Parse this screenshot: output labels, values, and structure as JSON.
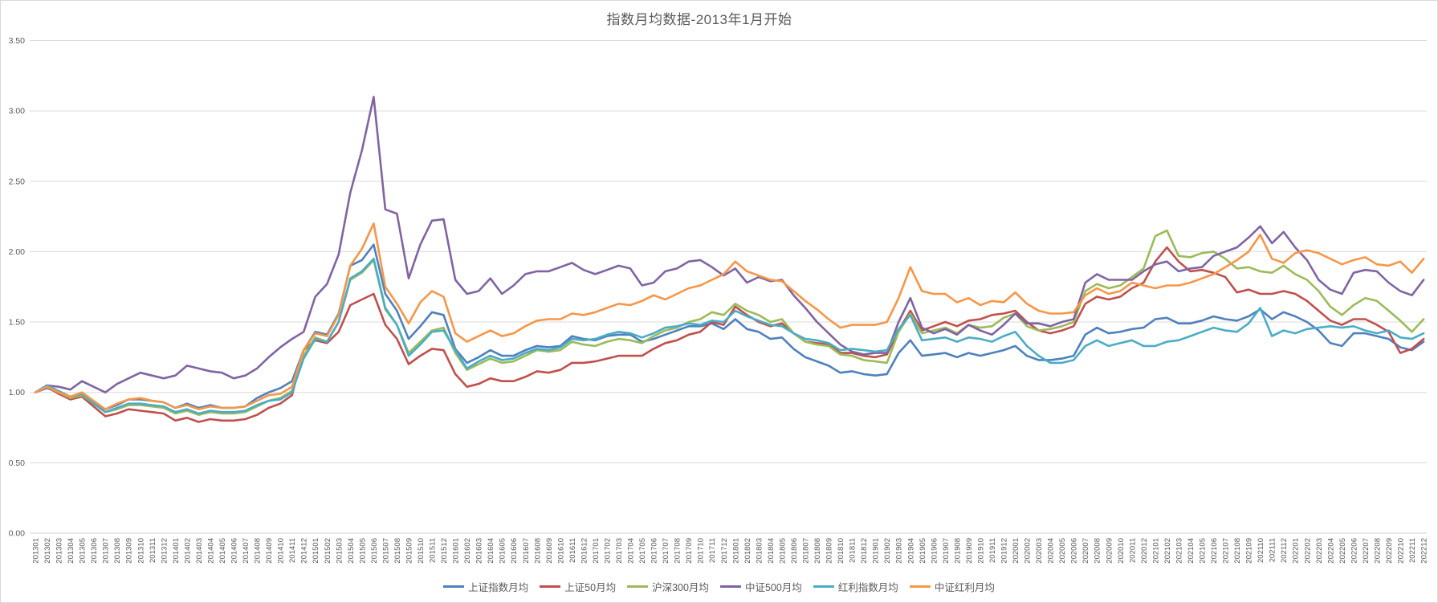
{
  "title": "指数月均数据-2013年1月开始",
  "chart_data": {
    "type": "line",
    "title": "指数月均数据-2013年1月开始",
    "xlabel": "",
    "ylabel": "",
    "ylim": [
      0,
      3.5
    ],
    "y_tick_step": 0.5,
    "y_ticks": [
      "0.00",
      "0.50",
      "1.00",
      "1.50",
      "2.00",
      "2.50",
      "3.00",
      "3.50"
    ],
    "grid": "horizontal",
    "legend_position": "bottom",
    "x_labels": [
      "201301",
      "201302",
      "201303",
      "201304",
      "201305",
      "201306",
      "201307",
      "201308",
      "201309",
      "201310",
      "201311",
      "201312",
      "201401",
      "201402",
      "201403",
      "201404",
      "201405",
      "201406",
      "201407",
      "201408",
      "201409",
      "201410",
      "201411",
      "201412",
      "201501",
      "201502",
      "201503",
      "201504",
      "201505",
      "201506",
      "201507",
      "201508",
      "201509",
      "201510",
      "201511",
      "201512",
      "201601",
      "201602",
      "201603",
      "201604",
      "201605",
      "201606",
      "201607",
      "201608",
      "201609",
      "201610",
      "201611",
      "201612",
      "201701",
      "201702",
      "201703",
      "201704",
      "201705",
      "201706",
      "201707",
      "201708",
      "201709",
      "201710",
      "201711",
      "201712",
      "201801",
      "201802",
      "201803",
      "201804",
      "201805",
      "201806",
      "201807",
      "201808",
      "201809",
      "201810",
      "201811",
      "201812",
      "201901",
      "201902",
      "201903",
      "201904",
      "201905",
      "201906",
      "201907",
      "201908",
      "201909",
      "201910",
      "201911",
      "201912",
      "202001",
      "202002",
      "202003",
      "202004",
      "202005",
      "202006",
      "202007",
      "202008",
      "202009",
      "202010",
      "202011",
      "202012",
      "202101",
      "202102",
      "202103",
      "202104",
      "202105",
      "202106",
      "202107",
      "202108",
      "202109",
      "202110",
      "202111",
      "202112",
      "202201",
      "202202",
      "202203",
      "202204",
      "202205",
      "202206",
      "202207",
      "202208",
      "202209",
      "202210",
      "202211",
      "202212"
    ],
    "series": [
      {
        "name": "上证指数月均",
        "color": "#4F81BD",
        "values": [
          1.0,
          1.03,
          1.0,
          0.97,
          0.99,
          0.93,
          0.88,
          0.91,
          0.95,
          0.95,
          0.94,
          0.93,
          0.89,
          0.92,
          0.89,
          0.91,
          0.89,
          0.89,
          0.9,
          0.96,
          1.0,
          1.03,
          1.08,
          1.3,
          1.43,
          1.41,
          1.56,
          1.9,
          1.94,
          2.05,
          1.7,
          1.58,
          1.38,
          1.47,
          1.57,
          1.55,
          1.31,
          1.21,
          1.25,
          1.3,
          1.26,
          1.26,
          1.3,
          1.33,
          1.32,
          1.33,
          1.4,
          1.38,
          1.37,
          1.4,
          1.41,
          1.41,
          1.36,
          1.38,
          1.41,
          1.44,
          1.47,
          1.47,
          1.49,
          1.45,
          1.52,
          1.45,
          1.43,
          1.38,
          1.39,
          1.31,
          1.25,
          1.22,
          1.19,
          1.14,
          1.15,
          1.13,
          1.12,
          1.13,
          1.28,
          1.37,
          1.26,
          1.27,
          1.28,
          1.25,
          1.28,
          1.26,
          1.28,
          1.3,
          1.33,
          1.26,
          1.23,
          1.23,
          1.24,
          1.26,
          1.41,
          1.46,
          1.42,
          1.43,
          1.45,
          1.46,
          1.52,
          1.53,
          1.49,
          1.49,
          1.51,
          1.54,
          1.52,
          1.51,
          1.54,
          1.59,
          1.52,
          1.57,
          1.54,
          1.5,
          1.44,
          1.35,
          1.33,
          1.42,
          1.42,
          1.4,
          1.38,
          1.32,
          1.3,
          1.36
        ]
      },
      {
        "name": "上证50月均",
        "color": "#C0504D",
        "values": [
          1.0,
          1.04,
          0.99,
          0.95,
          0.97,
          0.9,
          0.83,
          0.85,
          0.88,
          0.87,
          0.86,
          0.85,
          0.8,
          0.82,
          0.79,
          0.81,
          0.8,
          0.8,
          0.81,
          0.84,
          0.89,
          0.92,
          0.98,
          1.3,
          1.37,
          1.35,
          1.43,
          1.62,
          1.66,
          1.7,
          1.48,
          1.38,
          1.2,
          1.26,
          1.31,
          1.3,
          1.13,
          1.04,
          1.06,
          1.1,
          1.08,
          1.08,
          1.11,
          1.15,
          1.14,
          1.16,
          1.21,
          1.21,
          1.22,
          1.24,
          1.26,
          1.26,
          1.26,
          1.31,
          1.35,
          1.37,
          1.41,
          1.43,
          1.5,
          1.48,
          1.61,
          1.55,
          1.5,
          1.47,
          1.49,
          1.42,
          1.36,
          1.35,
          1.34,
          1.28,
          1.28,
          1.26,
          1.25,
          1.27,
          1.44,
          1.58,
          1.44,
          1.47,
          1.5,
          1.47,
          1.51,
          1.52,
          1.55,
          1.56,
          1.58,
          1.5,
          1.44,
          1.42,
          1.44,
          1.47,
          1.63,
          1.68,
          1.66,
          1.68,
          1.74,
          1.78,
          1.93,
          2.03,
          1.93,
          1.86,
          1.87,
          1.85,
          1.82,
          1.71,
          1.73,
          1.7,
          1.7,
          1.72,
          1.7,
          1.65,
          1.58,
          1.51,
          1.48,
          1.52,
          1.52,
          1.48,
          1.43,
          1.28,
          1.31,
          1.38
        ]
      },
      {
        "name": "沪深300月均",
        "color": "#9BBB59",
        "values": [
          1.0,
          1.04,
          1.0,
          0.96,
          0.98,
          0.92,
          0.86,
          0.88,
          0.91,
          0.91,
          0.9,
          0.89,
          0.85,
          0.87,
          0.84,
          0.86,
          0.85,
          0.85,
          0.86,
          0.9,
          0.94,
          0.96,
          1.01,
          1.26,
          1.39,
          1.36,
          1.5,
          1.8,
          1.85,
          1.94,
          1.59,
          1.48,
          1.28,
          1.36,
          1.44,
          1.46,
          1.28,
          1.16,
          1.2,
          1.24,
          1.21,
          1.22,
          1.26,
          1.3,
          1.29,
          1.3,
          1.36,
          1.34,
          1.33,
          1.36,
          1.38,
          1.37,
          1.35,
          1.4,
          1.44,
          1.46,
          1.5,
          1.52,
          1.57,
          1.55,
          1.63,
          1.58,
          1.55,
          1.5,
          1.52,
          1.42,
          1.36,
          1.34,
          1.33,
          1.27,
          1.26,
          1.23,
          1.22,
          1.21,
          1.43,
          1.56,
          1.42,
          1.44,
          1.46,
          1.42,
          1.48,
          1.46,
          1.47,
          1.53,
          1.56,
          1.47,
          1.44,
          1.45,
          1.47,
          1.5,
          1.72,
          1.77,
          1.74,
          1.76,
          1.82,
          1.88,
          2.11,
          2.15,
          1.97,
          1.96,
          1.99,
          2.0,
          1.95,
          1.88,
          1.89,
          1.86,
          1.85,
          1.9,
          1.84,
          1.8,
          1.72,
          1.61,
          1.55,
          1.62,
          1.67,
          1.65,
          1.58,
          1.51,
          1.43,
          1.52
        ]
      },
      {
        "name": "中证500月均",
        "color": "#8064A2",
        "values": [
          1.0,
          1.05,
          1.04,
          1.02,
          1.08,
          1.04,
          1.0,
          1.06,
          1.1,
          1.14,
          1.12,
          1.1,
          1.12,
          1.19,
          1.17,
          1.15,
          1.14,
          1.1,
          1.12,
          1.17,
          1.25,
          1.32,
          1.38,
          1.43,
          1.68,
          1.77,
          1.98,
          2.42,
          2.72,
          3.1,
          2.3,
          2.27,
          1.81,
          2.05,
          2.22,
          2.23,
          1.8,
          1.7,
          1.72,
          1.81,
          1.7,
          1.76,
          1.84,
          1.86,
          1.86,
          1.89,
          1.92,
          1.87,
          1.84,
          1.87,
          1.9,
          1.88,
          1.76,
          1.78,
          1.86,
          1.88,
          1.93,
          1.94,
          1.89,
          1.83,
          1.88,
          1.78,
          1.82,
          1.79,
          1.8,
          1.69,
          1.6,
          1.5,
          1.42,
          1.34,
          1.29,
          1.27,
          1.28,
          1.28,
          1.5,
          1.67,
          1.46,
          1.42,
          1.45,
          1.41,
          1.48,
          1.44,
          1.41,
          1.48,
          1.56,
          1.49,
          1.49,
          1.47,
          1.5,
          1.52,
          1.78,
          1.84,
          1.8,
          1.8,
          1.8,
          1.86,
          1.91,
          1.93,
          1.86,
          1.88,
          1.89,
          1.97,
          2.0,
          2.03,
          2.1,
          2.18,
          2.06,
          2.14,
          2.03,
          1.94,
          1.8,
          1.73,
          1.7,
          1.85,
          1.87,
          1.86,
          1.78,
          1.72,
          1.69,
          1.8
        ]
      },
      {
        "name": "红利指数月均",
        "color": "#4BACC6",
        "values": [
          1.0,
          1.05,
          1.01,
          0.97,
          0.99,
          0.92,
          0.86,
          0.89,
          0.92,
          0.92,
          0.91,
          0.9,
          0.86,
          0.88,
          0.85,
          0.87,
          0.86,
          0.86,
          0.87,
          0.91,
          0.94,
          0.95,
          1.0,
          1.24,
          1.38,
          1.36,
          1.5,
          1.81,
          1.86,
          1.95,
          1.6,
          1.48,
          1.26,
          1.34,
          1.43,
          1.44,
          1.3,
          1.17,
          1.22,
          1.26,
          1.23,
          1.24,
          1.28,
          1.31,
          1.3,
          1.32,
          1.38,
          1.37,
          1.38,
          1.41,
          1.43,
          1.42,
          1.39,
          1.42,
          1.46,
          1.47,
          1.49,
          1.48,
          1.51,
          1.5,
          1.58,
          1.54,
          1.51,
          1.48,
          1.47,
          1.42,
          1.38,
          1.37,
          1.35,
          1.3,
          1.31,
          1.3,
          1.29,
          1.3,
          1.45,
          1.55,
          1.37,
          1.38,
          1.39,
          1.36,
          1.39,
          1.38,
          1.36,
          1.4,
          1.43,
          1.33,
          1.26,
          1.21,
          1.21,
          1.23,
          1.33,
          1.37,
          1.33,
          1.35,
          1.37,
          1.33,
          1.33,
          1.36,
          1.37,
          1.4,
          1.43,
          1.46,
          1.44,
          1.43,
          1.49,
          1.6,
          1.4,
          1.44,
          1.42,
          1.45,
          1.46,
          1.47,
          1.46,
          1.47,
          1.44,
          1.42,
          1.44,
          1.39,
          1.38,
          1.42
        ]
      },
      {
        "name": "中证红利月均",
        "color": "#F79646",
        "values": [
          1.0,
          1.04,
          1.0,
          0.97,
          1.0,
          0.94,
          0.88,
          0.92,
          0.95,
          0.96,
          0.94,
          0.93,
          0.89,
          0.91,
          0.88,
          0.9,
          0.89,
          0.89,
          0.9,
          0.94,
          0.98,
          0.99,
          1.04,
          1.3,
          1.42,
          1.4,
          1.55,
          1.9,
          2.02,
          2.2,
          1.75,
          1.63,
          1.49,
          1.64,
          1.72,
          1.68,
          1.42,
          1.36,
          1.4,
          1.44,
          1.4,
          1.42,
          1.47,
          1.51,
          1.52,
          1.52,
          1.56,
          1.55,
          1.57,
          1.6,
          1.63,
          1.62,
          1.65,
          1.69,
          1.66,
          1.7,
          1.74,
          1.76,
          1.8,
          1.84,
          1.93,
          1.86,
          1.83,
          1.8,
          1.79,
          1.72,
          1.65,
          1.59,
          1.52,
          1.46,
          1.48,
          1.48,
          1.48,
          1.5,
          1.67,
          1.89,
          1.72,
          1.7,
          1.7,
          1.64,
          1.67,
          1.62,
          1.65,
          1.64,
          1.71,
          1.63,
          1.58,
          1.56,
          1.56,
          1.57,
          1.69,
          1.74,
          1.7,
          1.72,
          1.78,
          1.76,
          1.74,
          1.76,
          1.76,
          1.78,
          1.81,
          1.84,
          1.89,
          1.94,
          2.0,
          2.12,
          1.95,
          1.92,
          1.99,
          2.01,
          1.99,
          1.95,
          1.91,
          1.94,
          1.96,
          1.91,
          1.9,
          1.93,
          1.85,
          1.95
        ]
      }
    ],
    "style": {
      "grid_color": "#d9d9d9",
      "axis_line_color": "#d0d0d0",
      "tick_label_color": "#595959",
      "title_color": "#595959",
      "background": "#ffffff",
      "line_width": 2.6
    }
  }
}
